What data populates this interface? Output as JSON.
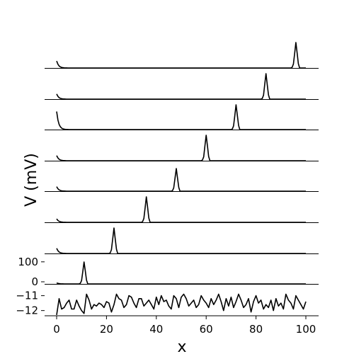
{
  "chart_data": {
    "type": "line",
    "title": "",
    "xlabel": "x",
    "ylabel": "V (mV)",
    "xlim": [
      0,
      100
    ],
    "x_ticks": [
      "0",
      "20",
      "40",
      "60",
      "80",
      "100"
    ],
    "grid": false,
    "legend": "none",
    "line_color": "#000000",
    "panels": [
      {
        "name": "spike_trace",
        "peak_x": 96,
        "peak": 110,
        "start": 30,
        "ylim": [
          0,
          120
        ]
      },
      {
        "name": "spike_trace",
        "peak_x": 84,
        "peak": 110,
        "start": 22,
        "ylim": [
          0,
          120
        ]
      },
      {
        "name": "spike_trace",
        "peak_x": 72,
        "peak": 110,
        "start": 80,
        "ylim": [
          0,
          120
        ]
      },
      {
        "name": "spike_trace",
        "peak_x": 60,
        "peak": 110,
        "start": 22,
        "ylim": [
          0,
          120
        ]
      },
      {
        "name": "spike_trace",
        "peak_x": 48,
        "peak": 110,
        "start": 22,
        "ylim": [
          0,
          120
        ]
      },
      {
        "name": "spike_trace",
        "peak_x": 36,
        "peak": 110,
        "start": 15,
        "ylim": [
          0,
          120
        ]
      },
      {
        "name": "spike_trace",
        "peak_x": 23,
        "peak": 110,
        "start": 22,
        "ylim": [
          0,
          120
        ]
      },
      {
        "name": "spike_trace",
        "peak_x": 11,
        "peak": 110,
        "start": 5,
        "ylim": [
          -10,
          130
        ],
        "y_ticks": [
          "100",
          "0"
        ]
      }
    ],
    "noise_panel": {
      "name": "noise_trace",
      "ylim": [
        -12.35,
        -10.4
      ],
      "y_ticks": [
        "−11",
        "−12"
      ],
      "x": [
        0,
        1,
        2,
        3,
        4,
        5,
        6,
        7,
        8,
        9,
        10,
        11,
        12,
        13,
        14,
        15,
        16,
        17,
        18,
        19,
        20,
        21,
        22,
        23,
        24,
        25,
        26,
        27,
        28,
        29,
        30,
        31,
        32,
        33,
        34,
        35,
        36,
        37,
        38,
        39,
        40,
        41,
        42,
        43,
        44,
        45,
        46,
        47,
        48,
        49,
        50,
        51,
        52,
        53,
        54,
        55,
        56,
        57,
        58,
        59,
        60,
        61,
        62,
        63,
        64,
        65,
        66,
        67,
        68,
        69,
        70,
        71,
        72,
        73,
        74,
        75,
        76,
        77,
        78,
        79,
        80,
        81,
        82,
        83,
        84,
        85,
        86,
        87,
        88,
        89,
        90,
        91,
        92,
        93,
        94,
        95,
        96,
        97,
        98,
        99,
        100
      ],
      "values": [
        -12.3,
        -11.2,
        -11.9,
        -11.8,
        -11.5,
        -11.3,
        -11.9,
        -11.9,
        -11.3,
        -11.7,
        -12.0,
        -12.2,
        -10.9,
        -11.3,
        -11.9,
        -11.6,
        -11.7,
        -11.5,
        -11.6,
        -11.8,
        -11.4,
        -11.5,
        -12.1,
        -11.6,
        -10.9,
        -11.2,
        -11.3,
        -11.8,
        -11.6,
        -11.0,
        -11.1,
        -11.5,
        -11.8,
        -11.2,
        -11.2,
        -11.7,
        -11.5,
        -11.3,
        -11.6,
        -11.9,
        -11.1,
        -11.6,
        -11.0,
        -11.4,
        -11.3,
        -11.7,
        -11.9,
        -11.0,
        -11.2,
        -11.8,
        -11.1,
        -10.9,
        -11.2,
        -11.7,
        -11.5,
        -11.3,
        -11.8,
        -11.6,
        -11.0,
        -11.3,
        -11.5,
        -11.8,
        -11.2,
        -11.6,
        -11.3,
        -10.9,
        -11.4,
        -12.0,
        -11.2,
        -11.7,
        -11.1,
        -11.8,
        -11.4,
        -10.9,
        -11.3,
        -11.8,
        -11.6,
        -11.2,
        -12.1,
        -11.4,
        -11.0,
        -11.5,
        -11.3,
        -11.9,
        -11.6,
        -11.8,
        -11.3,
        -12.0,
        -11.2,
        -11.7,
        -11.5,
        -11.9,
        -10.9,
        -11.3,
        -11.5,
        -11.9,
        -11.0,
        -11.3,
        -11.6,
        -11.9,
        -11.4
      ]
    }
  }
}
